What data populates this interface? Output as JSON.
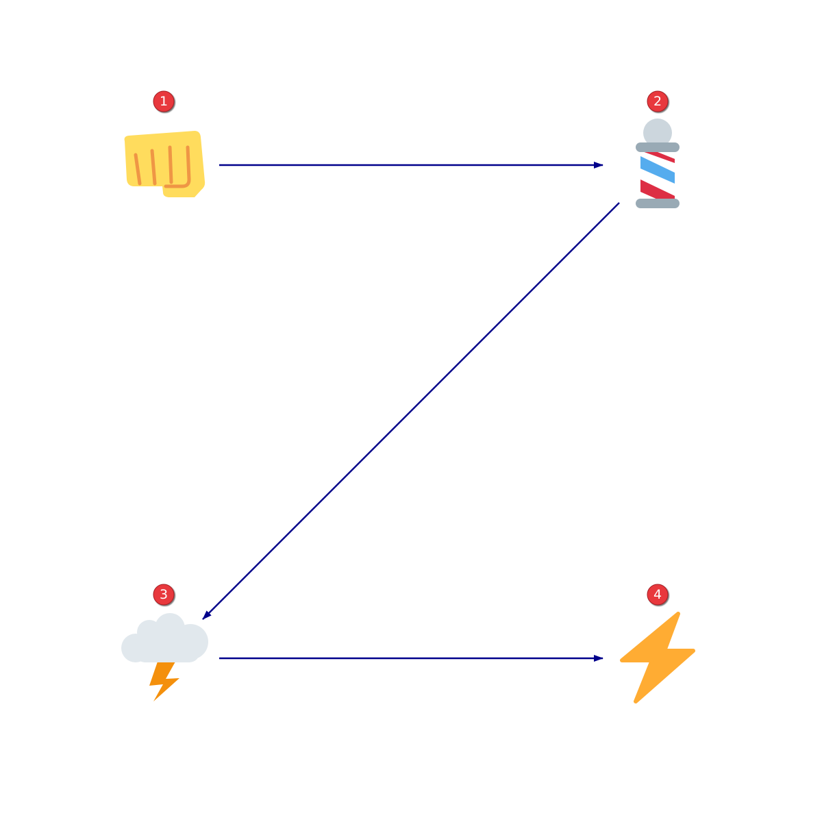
{
  "diagram": {
    "type": "flow",
    "edge_color": "#00008b",
    "badge_color": "#e8383d",
    "nodes": [
      {
        "id": "1",
        "badge": "1",
        "icon": "oncoming-fist-icon"
      },
      {
        "id": "2",
        "badge": "2",
        "icon": "barber-pole-icon"
      },
      {
        "id": "3",
        "badge": "3",
        "icon": "cloud-with-lightning-icon"
      },
      {
        "id": "4",
        "badge": "4",
        "icon": "high-voltage-icon"
      }
    ],
    "edges": [
      {
        "from": "1",
        "to": "2"
      },
      {
        "from": "2",
        "to": "3"
      },
      {
        "from": "3",
        "to": "4"
      }
    ]
  }
}
